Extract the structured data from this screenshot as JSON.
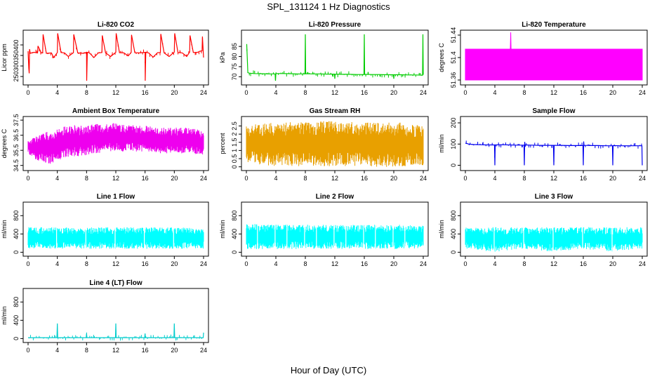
{
  "figure": {
    "title": "SPL_131124  1 Hz Diagnostics",
    "xlabel": "Hour of Day (UTC)"
  },
  "chart_data": [
    {
      "type": "line",
      "title": "Li-820 CO2",
      "ylabel": "Licor ppm",
      "color": "#ff0000",
      "xlim": [
        0,
        24
      ],
      "ylim": [
        220,
        460
      ],
      "xticks": [
        0,
        4,
        8,
        12,
        16,
        20,
        24
      ],
      "yticks": [
        250,
        300,
        350,
        400
      ],
      "series": [
        {
          "x": [
            0,
            0.1,
            0.15,
            0.2,
            0.3,
            0.8,
            1.3,
            1.35,
            1.8,
            2,
            2.05,
            2.5,
            3.2,
            3.5,
            4,
            4.05,
            4.5,
            5,
            5.5,
            6.2,
            6.25,
            6.8,
            7.6,
            8,
            8.02,
            8.1,
            8.4,
            9,
            9.6,
            10.1,
            10.15,
            10.6,
            11.3,
            12,
            12.05,
            12.5,
            13.1,
            13.7,
            14.1,
            14.15,
            14.6,
            15.3,
            16,
            16.02,
            16.1,
            16.5,
            17.1,
            17.7,
            18.1,
            18.15,
            18.6,
            19.3,
            20,
            20.05,
            20.5,
            21.1,
            21.7,
            22.1,
            22.15,
            22.6,
            23.2,
            23.5,
            23.8,
            23.85,
            24
          ],
          "y": [
            370,
            290,
            265,
            380,
            360,
            365,
            362,
            395,
            362,
            362,
            450,
            360,
            362,
            340,
            364,
            455,
            364,
            362,
            345,
            363,
            450,
            362,
            360,
            365,
            230,
            365,
            362,
            340,
            362,
            364,
            445,
            362,
            345,
            365,
            455,
            363,
            362,
            348,
            364,
            448,
            363,
            362,
            365,
            230,
            365,
            362,
            342,
            363,
            364,
            452,
            362,
            345,
            366,
            455,
            364,
            362,
            345,
            366,
            445,
            364,
            365,
            370,
            372,
            440,
            340
          ]
        }
      ]
    },
    {
      "type": "line",
      "title": "Li-820 Pressure",
      "ylabel": "kPa",
      "color": "#00cc00",
      "xlim": [
        0,
        24
      ],
      "ylim": [
        67,
        92
      ],
      "xticks": [
        0,
        4,
        8,
        12,
        16,
        20,
        24
      ],
      "yticks": [
        70,
        75,
        80,
        85
      ],
      "series": [
        {
          "x": [
            0,
            0.05,
            0.2,
            0.4,
            1,
            2,
            3,
            3.9,
            3.95,
            4,
            4.05,
            5,
            6,
            7,
            7.95,
            8,
            8.05,
            9,
            10,
            11,
            11.95,
            12,
            12.05,
            13,
            14,
            15,
            15.95,
            16,
            16.05,
            17,
            18,
            19,
            19.95,
            20,
            20.05,
            21,
            22,
            23,
            23.9,
            23.95,
            24
          ],
          "y": [
            86,
            86,
            72,
            71.8,
            71.6,
            71.5,
            71.4,
            71.4,
            68,
            71.4,
            71.6,
            71.6,
            71.5,
            71.4,
            71.4,
            91,
            71.5,
            71.4,
            71.4,
            71.3,
            71.3,
            69,
            71.3,
            71.2,
            71.2,
            71.1,
            71.1,
            91,
            71.2,
            71.1,
            71.1,
            71,
            71,
            69,
            71,
            71,
            70.9,
            70.9,
            70.8,
            91,
            71
          ]
        }
      ]
    },
    {
      "type": "area",
      "title": "Li-820 Temperature",
      "ylabel": "degrees C",
      "color": "#ff00ff",
      "xlim": [
        0,
        24
      ],
      "ylim": [
        51.355,
        51.445
      ],
      "xticks": [
        0,
        4,
        8,
        12,
        16,
        20,
        24
      ],
      "yticks": [
        51.36,
        51.4,
        51.44
      ],
      "series": [
        {
          "x": [
            0,
            6.1,
            6.15,
            6.2,
            24
          ],
          "y": [
            51.415,
            51.415,
            51.445,
            51.415,
            51.415
          ],
          "ymin": 51.36
        }
      ]
    },
    {
      "type": "area",
      "title": "Ambient Box Temperature",
      "ylabel": "degrees C",
      "color": "#ee00ee",
      "xlim": [
        0,
        24
      ],
      "ylim": [
        34.3,
        37.6
      ],
      "xticks": [
        0,
        4,
        8,
        12,
        16,
        20,
        24
      ],
      "yticks": [
        34.5,
        35.5,
        36.5,
        37.5
      ],
      "series": [
        {
          "x": [
            0,
            1,
            2,
            3,
            4,
            5,
            6,
            7,
            8,
            9,
            10,
            11,
            12,
            13,
            14,
            15,
            16,
            17,
            18,
            19,
            20,
            21,
            22,
            23,
            24
          ],
          "upper": [
            36.2,
            36.4,
            36.6,
            36.8,
            36.9,
            37.1,
            37.2,
            37.1,
            37.2,
            37.3,
            37.2,
            37.3,
            37.3,
            37.2,
            37.2,
            37.1,
            37.2,
            37.1,
            37.0,
            37.0,
            37.0,
            37.0,
            37.0,
            36.9,
            36.8
          ],
          "lower": [
            35.3,
            34.9,
            34.7,
            34.5,
            34.8,
            35.0,
            35.1,
            35.1,
            35.2,
            35.3,
            35.3,
            35.4,
            35.5,
            35.4,
            35.5,
            35.4,
            35.4,
            35.4,
            35.3,
            35.3,
            35.3,
            35.3,
            35.3,
            35.2,
            35.2
          ]
        }
      ]
    },
    {
      "type": "area",
      "title": "Gas Stream RH",
      "ylabel": "percent",
      "color": "#e8a000",
      "xlim": [
        0,
        24
      ],
      "ylim": [
        -0.1,
        2.95
      ],
      "xticks": [
        0,
        4,
        8,
        12,
        16,
        20,
        24
      ],
      "yticks": [
        0,
        0.5,
        1,
        1.5,
        2,
        2.5
      ],
      "series": [
        {
          "x": [
            0,
            2,
            4,
            6,
            8,
            10,
            12,
            14,
            16,
            18,
            20,
            22,
            24
          ],
          "upper": [
            2.55,
            2.65,
            2.7,
            2.75,
            2.75,
            2.8,
            2.8,
            2.75,
            2.75,
            2.7,
            2.75,
            2.65,
            2.5
          ],
          "lower": [
            0.3,
            0.1,
            0.05,
            0.05,
            0.0,
            0.05,
            0.0,
            0.05,
            0.05,
            0.0,
            0.0,
            0.05,
            0.1
          ]
        }
      ]
    },
    {
      "type": "line",
      "title": "Sample Flow",
      "ylabel": "ml/min",
      "color": "#0000ee",
      "xlim": [
        0,
        24
      ],
      "ylim": [
        -15,
        220
      ],
      "xticks": [
        0,
        4,
        8,
        12,
        16,
        20,
        24
      ],
      "yticks": [
        0,
        100,
        200
      ],
      "series": [
        {
          "x": [
            0,
            0.5,
            1,
            2,
            3,
            3.95,
            4,
            4.05,
            5,
            6,
            7,
            7.95,
            8,
            8.05,
            8.1,
            9,
            10,
            11,
            11.95,
            12,
            12.05,
            13,
            14,
            15,
            15.95,
            16,
            16.05,
            16.1,
            17,
            18,
            19,
            19.95,
            20,
            20.05,
            21,
            22,
            23,
            23.95,
            24
          ],
          "y": [
            104,
            100,
            98,
            97,
            96,
            96,
            0,
            96,
            97,
            96,
            95,
            95,
            0,
            110,
            96,
            95,
            94,
            94,
            94,
            0,
            94,
            94,
            93,
            93,
            93,
            0,
            112,
            94,
            93,
            93,
            92,
            92,
            0,
            93,
            92,
            92,
            92,
            92,
            0
          ]
        }
      ]
    },
    {
      "type": "area",
      "title": "Line 1 Flow",
      "ylabel": "ml/min",
      "color": "#00ffff",
      "xlim": [
        0,
        24
      ],
      "ylim": [
        -40,
        1050
      ],
      "xticks": [
        0,
        4,
        8,
        12,
        16,
        20,
        24
      ],
      "yticks": [
        0,
        400,
        800
      ],
      "series": [
        {
          "x": [
            0,
            4,
            8,
            12,
            16,
            20,
            24
          ],
          "upper": [
            550,
            545,
            545,
            545,
            545,
            545,
            520
          ],
          "lower": [
            80,
            78,
            75,
            75,
            75,
            75,
            80
          ],
          "gaps": [
            3.9,
            7.9,
            11.9,
            15.9,
            19.9
          ]
        }
      ]
    },
    {
      "type": "area",
      "title": "Line 2 Flow",
      "ylabel": "ml/min",
      "color": "#00ffff",
      "xlim": [
        0,
        24
      ],
      "ylim": [
        -40,
        1050
      ],
      "xticks": [
        0,
        4,
        8,
        12,
        16,
        20,
        24
      ],
      "yticks": [
        0,
        400,
        800
      ],
      "series": [
        {
          "x": [
            0,
            4,
            8,
            12,
            16,
            20,
            24
          ],
          "upper": [
            620,
            610,
            600,
            600,
            600,
            600,
            600
          ],
          "lower": [
            70,
            70,
            70,
            70,
            70,
            70,
            75
          ],
          "gaps": [
            1.5,
            3.9,
            5.5,
            7.9,
            9.5,
            11.9,
            13.5,
            15.9,
            17.5,
            19.9,
            21.5
          ]
        }
      ]
    },
    {
      "type": "area",
      "title": "Line 3 Flow",
      "ylabel": "ml/min",
      "color": "#00ffff",
      "xlim": [
        0,
        24
      ],
      "ylim": [
        -40,
        1050
      ],
      "xticks": [
        0,
        4,
        8,
        12,
        16,
        20,
        24
      ],
      "yticks": [
        0,
        400,
        800
      ],
      "series": [
        {
          "x": [
            0,
            4,
            8,
            12,
            16,
            20,
            24
          ],
          "upper": [
            550,
            550,
            550,
            550,
            550,
            550,
            545
          ],
          "lower": [
            75,
            10,
            75,
            10,
            75,
            10,
            80
          ],
          "gaps": [
            3.9,
            7.9,
            11.9,
            15.9,
            19.9
          ]
        }
      ]
    },
    {
      "type": "line",
      "title": "Line 4 (LT) Flow",
      "ylabel": "ml/min",
      "color": "#00cccc",
      "xlim": [
        0,
        24
      ],
      "ylim": [
        -40,
        1050
      ],
      "xticks": [
        0,
        4,
        8,
        12,
        16,
        20,
        24
      ],
      "yticks": [
        0,
        400,
        800
      ],
      "series": [
        {
          "x": [
            0,
            3.95,
            4,
            4.05,
            7.95,
            8,
            8.05,
            11.95,
            12,
            12.05,
            15.95,
            16,
            16.05,
            19.95,
            20,
            20.05,
            23.95,
            24
          ],
          "y": [
            20,
            20,
            330,
            20,
            20,
            110,
            20,
            20,
            330,
            20,
            20,
            110,
            20,
            20,
            330,
            20,
            20,
            130
          ]
        }
      ]
    }
  ]
}
